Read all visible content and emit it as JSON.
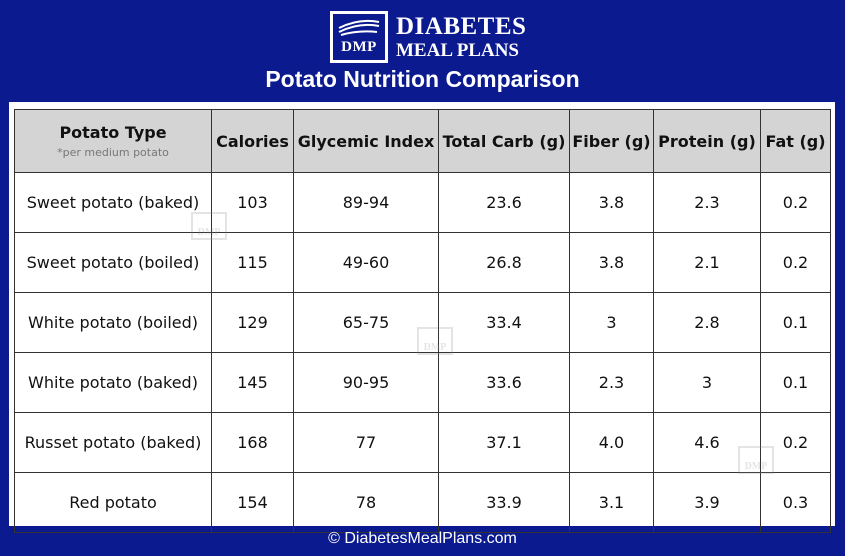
{
  "brand": {
    "badge_text": "DMP",
    "name_line1": "DIABETES",
    "name_line2": "MEAL PLANS",
    "watermark_text": "DMP"
  },
  "title": "Potato Nutrition Comparison",
  "table": {
    "headers": [
      "Potato Type",
      "Calories",
      "Glycemic Index",
      "Total Carb (g)",
      "Fiber (g)",
      "Protein (g)",
      "Fat (g)"
    ],
    "header_note": "*per medium potato",
    "rows": [
      [
        "Sweet potato (baked)",
        "103",
        "89-94",
        "23.6",
        "3.8",
        "2.3",
        "0.2"
      ],
      [
        "Sweet potato (boiled)",
        "115",
        "49-60",
        "26.8",
        "3.8",
        "2.1",
        "0.2"
      ],
      [
        "White potato (boiled)",
        "129",
        "65-75",
        "33.4",
        "3",
        "2.8",
        "0.1"
      ],
      [
        "White potato (baked)",
        "145",
        "90-95",
        "33.6",
        "2.3",
        "3",
        "0.1"
      ],
      [
        "Russet potato (baked)",
        "168",
        "77",
        "37.1",
        "4.0",
        "4.6",
        "0.2"
      ],
      [
        "Red potato",
        "154",
        "78",
        "33.9",
        "3.1",
        "3.9",
        "0.3"
      ]
    ]
  },
  "footer": "© DiabetesMealPlans.com",
  "colors": {
    "background": "#0b1a8f",
    "header_fill": "#d4d4d4",
    "panel": "#ffffff"
  }
}
